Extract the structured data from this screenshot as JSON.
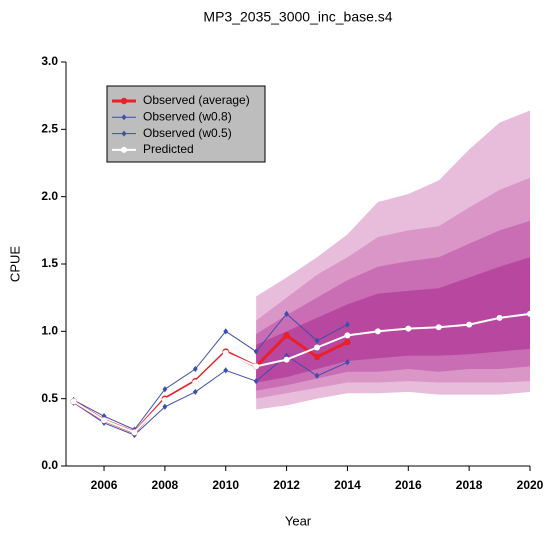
{
  "chart_data": {
    "type": "line",
    "title": "MP3_2035_3000_inc_base.s4",
    "x_label": "Year",
    "y_label": "CPUE",
    "x": [
      2005,
      2006,
      2007,
      2008,
      2009,
      2010,
      2011,
      2012,
      2013,
      2014,
      2015,
      2016,
      2017,
      2018,
      2019,
      2020
    ],
    "xlim": [
      2004.75,
      2020
    ],
    "ylim": [
      0,
      3
    ],
    "xticks": [
      2006,
      2008,
      2010,
      2012,
      2014,
      2016,
      2018,
      2020
    ],
    "yticks": [
      {
        "value": 0,
        "label": "0.0"
      },
      0.5,
      {
        "value": 1,
        "label": "1.0"
      },
      1.5,
      {
        "value": 2,
        "label": "2.0"
      },
      2.5,
      {
        "value": 3,
        "label": "3.0"
      }
    ],
    "bands": [
      {
        "color": "#e8bddb",
        "lower": [
          null,
          null,
          null,
          null,
          null,
          null,
          0.42,
          0.45,
          0.5,
          0.54,
          0.54,
          0.55,
          0.53,
          0.53,
          0.53,
          0.55
        ],
        "upper": [
          null,
          null,
          null,
          null,
          null,
          null,
          1.26,
          1.4,
          1.55,
          1.72,
          1.96,
          2.02,
          2.12,
          2.35,
          2.55,
          2.64
        ]
      },
      {
        "color": "#d996c7",
        "lower": [
          null,
          null,
          null,
          null,
          null,
          null,
          0.5,
          0.54,
          0.58,
          0.62,
          0.62,
          0.63,
          0.62,
          0.62,
          0.62,
          0.63
        ],
        "upper": [
          null,
          null,
          null,
          null,
          null,
          null,
          1.08,
          1.25,
          1.42,
          1.55,
          1.7,
          1.75,
          1.78,
          1.92,
          2.05,
          2.14
        ]
      },
      {
        "color": "#c96db4",
        "lower": [
          null,
          null,
          null,
          null,
          null,
          null,
          0.56,
          0.6,
          0.65,
          0.7,
          0.7,
          0.72,
          0.7,
          0.72,
          0.72,
          0.74
        ],
        "upper": [
          null,
          null,
          null,
          null,
          null,
          null,
          0.98,
          1.12,
          1.25,
          1.38,
          1.48,
          1.52,
          1.55,
          1.65,
          1.75,
          1.82
        ]
      },
      {
        "color": "#b8479f",
        "lower": [
          null,
          null,
          null,
          null,
          null,
          null,
          0.62,
          0.66,
          0.72,
          0.78,
          0.8,
          0.82,
          0.82,
          0.83,
          0.85,
          0.87
        ],
        "upper": [
          null,
          null,
          null,
          null,
          null,
          null,
          0.9,
          1.0,
          1.1,
          1.2,
          1.28,
          1.3,
          1.32,
          1.4,
          1.48,
          1.55
        ]
      }
    ],
    "series": [
      {
        "name": "Observed (average)",
        "color": "#e8202a",
        "values": [
          0.48,
          0.34,
          0.25,
          0.5,
          0.63,
          0.85,
          0.74,
          0.97,
          0.81,
          0.92,
          null,
          null,
          null,
          null,
          null,
          null
        ]
      },
      {
        "name": "Observed (w0.8)",
        "color": "#3d4fae",
        "values": [
          0.49,
          0.37,
          0.27,
          0.57,
          0.72,
          1.0,
          0.85,
          1.13,
          0.93,
          1.05,
          null,
          null,
          null,
          null,
          null,
          null
        ]
      },
      {
        "name": "Observed (w0.5)",
        "color": "#3d4fae",
        "values": [
          0.47,
          0.32,
          0.23,
          0.44,
          0.55,
          0.71,
          0.63,
          0.82,
          0.67,
          0.77,
          null,
          null,
          null,
          null,
          null,
          null
        ]
      },
      {
        "name": "Predicted",
        "color": "#ffffff",
        "values": [
          0.48,
          0.34,
          0.25,
          0.49,
          0.62,
          0.84,
          0.74,
          0.79,
          0.88,
          0.97,
          1.0,
          1.02,
          1.03,
          1.05,
          1.1,
          1.13
        ]
      }
    ],
    "legend": "top-left"
  }
}
